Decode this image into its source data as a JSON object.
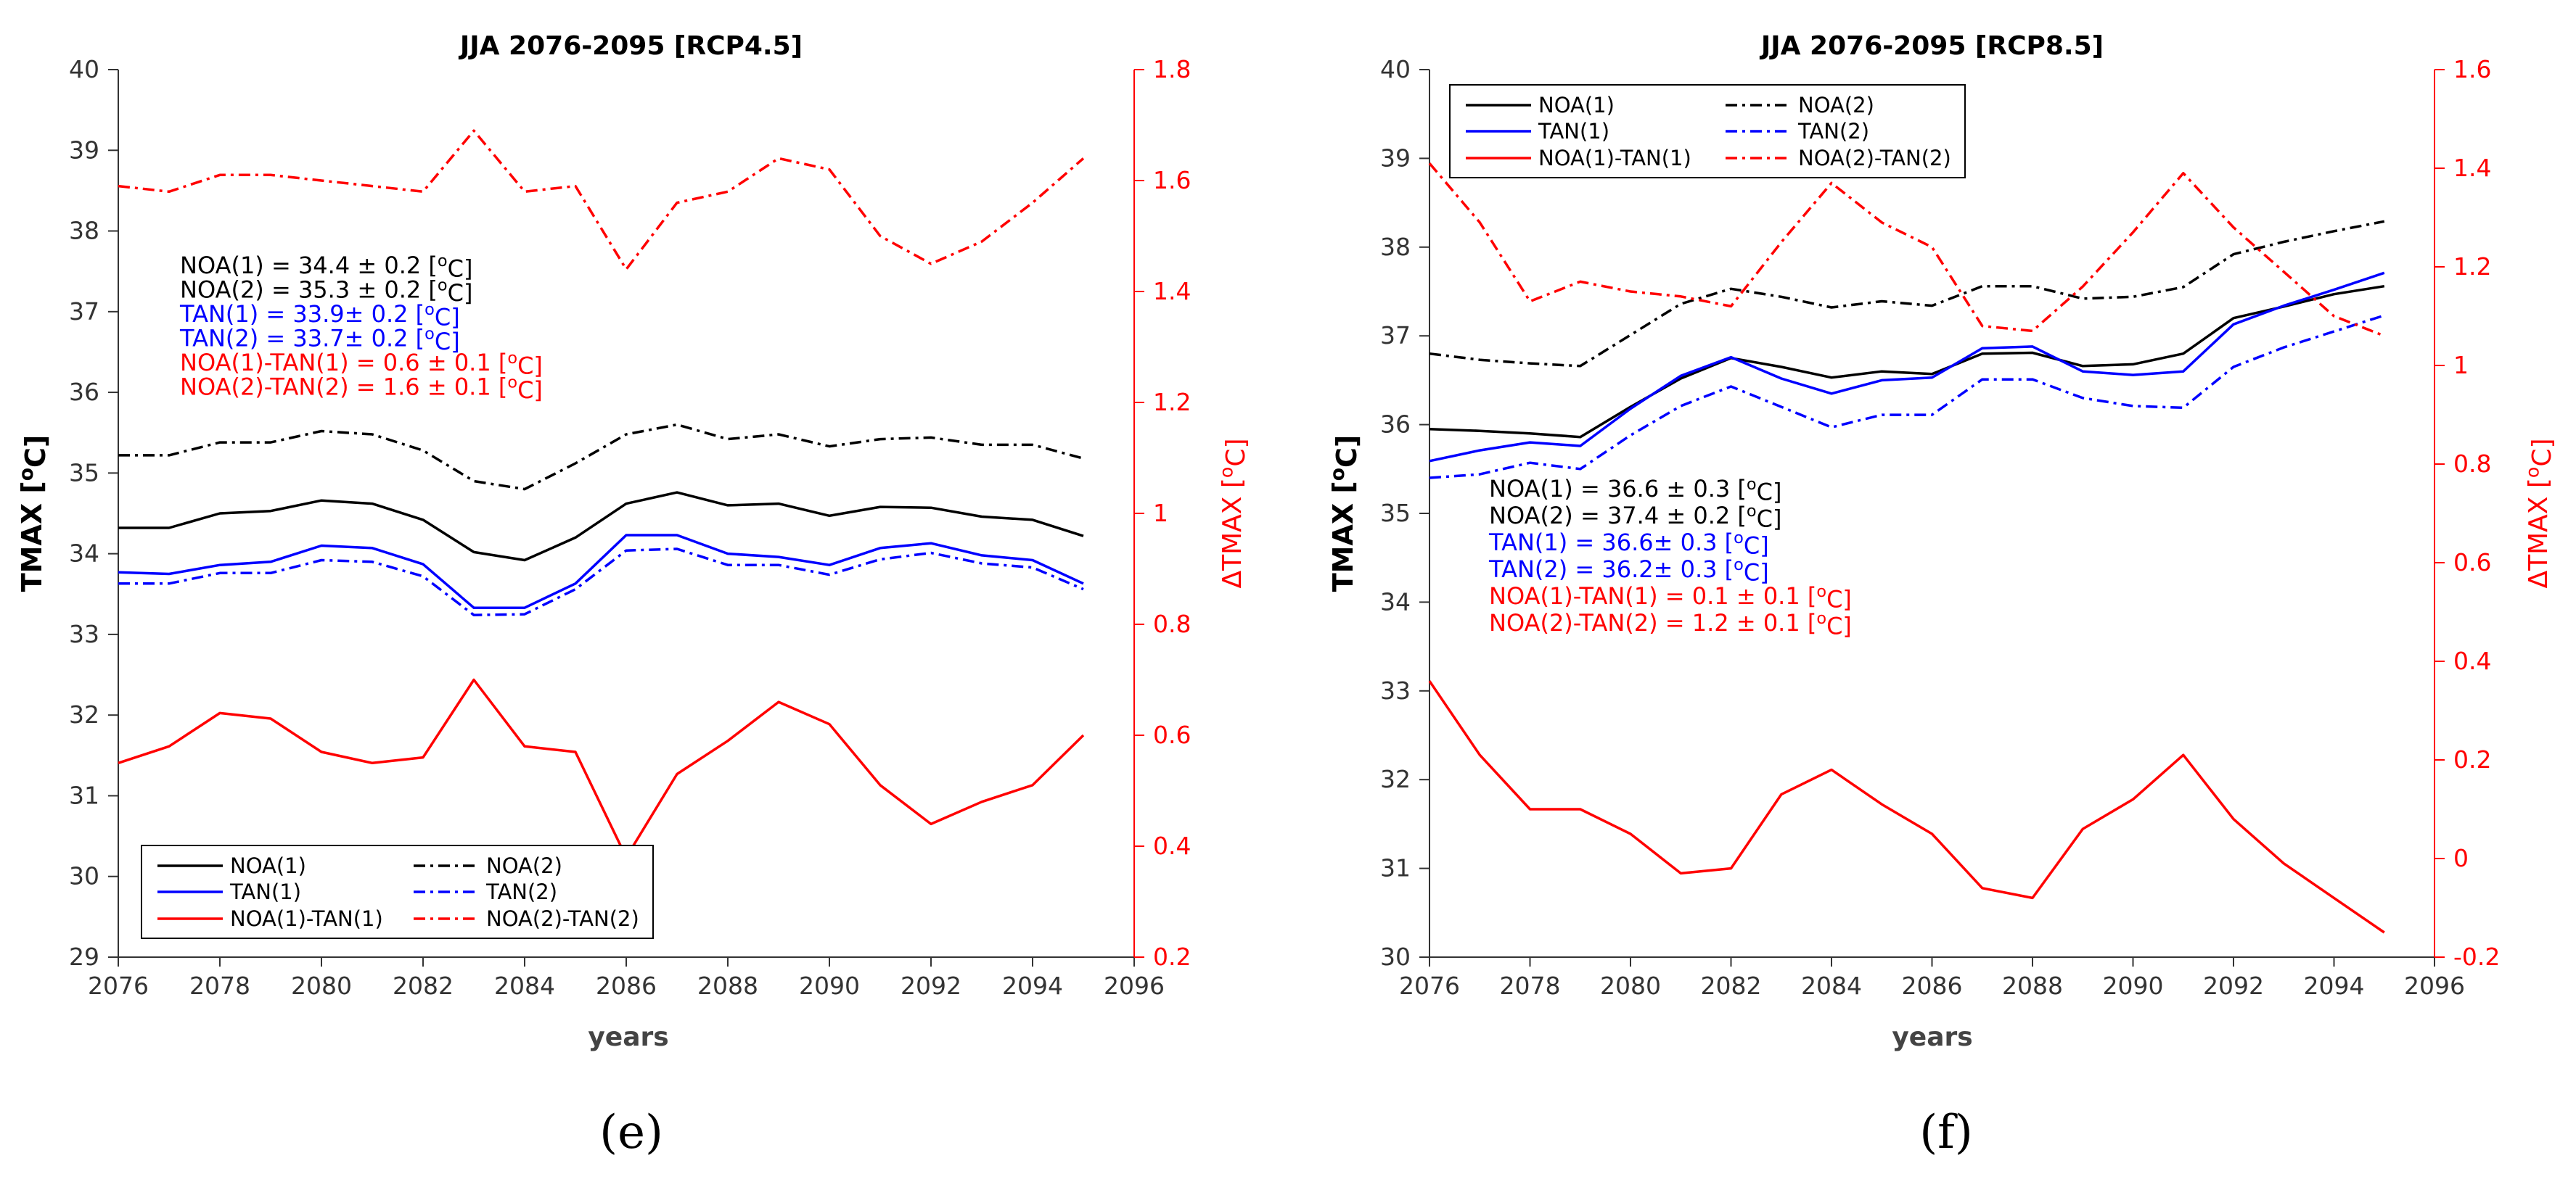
{
  "chart_data": [
    {
      "type": "line",
      "panel_label": "(e)",
      "title": "JJA 2076-2095 [RCP4.5]",
      "xlabel": "years",
      "ylabel_left": "TMAX [°C]",
      "ylabel_right": "ΔTMAX [°C]",
      "xlim": [
        2076,
        2096
      ],
      "ylim_left": [
        29,
        40
      ],
      "ylim_right": [
        0.2,
        1.8
      ],
      "x_ticks": [
        "2076",
        "2078",
        "2080",
        "2082",
        "2084",
        "2086",
        "2088",
        "2090",
        "2092",
        "2094",
        "2096"
      ],
      "y_ticks_left": [
        "29",
        "30",
        "31",
        "32",
        "33",
        "34",
        "35",
        "36",
        "37",
        "38",
        "39",
        "40"
      ],
      "y_ticks_right": [
        "0.2",
        "0.4",
        "0.6",
        "0.8",
        "1",
        "1.2",
        "1.4",
        "1.6",
        "1.8"
      ],
      "x": [
        2076,
        2077,
        2078,
        2079,
        2080,
        2081,
        2082,
        2083,
        2084,
        2085,
        2086,
        2087,
        2088,
        2089,
        2090,
        2091,
        2092,
        2093,
        2094,
        2095
      ],
      "series": [
        {
          "name": "NOA(1)",
          "axis": "left",
          "color": "#000000",
          "dash": "solid",
          "values": [
            34.32,
            34.32,
            34.5,
            34.53,
            34.66,
            34.62,
            34.42,
            34.02,
            33.92,
            34.2,
            34.62,
            34.76,
            34.6,
            34.62,
            34.47,
            34.58,
            34.57,
            34.46,
            34.42,
            34.22
          ]
        },
        {
          "name": "NOA(2)",
          "axis": "left",
          "color": "#000000",
          "dash": "dashdot",
          "values": [
            35.22,
            35.22,
            35.38,
            35.38,
            35.52,
            35.48,
            35.28,
            34.9,
            34.8,
            35.12,
            35.48,
            35.6,
            35.42,
            35.48,
            35.33,
            35.42,
            35.44,
            35.35,
            35.35,
            35.18
          ]
        },
        {
          "name": "TAN(1)",
          "axis": "left",
          "color": "#0000ff",
          "dash": "solid",
          "values": [
            33.77,
            33.75,
            33.86,
            33.9,
            34.1,
            34.07,
            33.87,
            33.33,
            33.33,
            33.63,
            34.23,
            34.23,
            34.0,
            33.96,
            33.86,
            34.07,
            34.13,
            33.98,
            33.92,
            33.63
          ]
        },
        {
          "name": "TAN(2)",
          "axis": "left",
          "color": "#0000ff",
          "dash": "dashdot",
          "values": [
            33.63,
            33.63,
            33.76,
            33.76,
            33.92,
            33.9,
            33.72,
            33.24,
            33.25,
            33.56,
            34.04,
            34.06,
            33.86,
            33.86,
            33.74,
            33.93,
            34.01,
            33.88,
            33.83,
            33.56
          ]
        },
        {
          "name": "NOA(1)-TAN(1)",
          "axis": "right",
          "color": "#ff0000",
          "dash": "solid",
          "values": [
            0.55,
            0.58,
            0.64,
            0.63,
            0.57,
            0.55,
            0.56,
            0.7,
            0.58,
            0.57,
            0.38,
            0.53,
            0.59,
            0.66,
            0.62,
            0.51,
            0.44,
            0.48,
            0.51,
            0.6
          ]
        },
        {
          "name": "NOA(2)-TAN(2)",
          "axis": "right",
          "color": "#ff0000",
          "dash": "dashdot",
          "values": [
            1.59,
            1.58,
            1.61,
            1.61,
            1.6,
            1.59,
            1.58,
            1.69,
            1.58,
            1.59,
            1.44,
            1.56,
            1.58,
            1.64,
            1.62,
            1.5,
            1.45,
            1.49,
            1.56,
            1.64
          ]
        }
      ],
      "annotations": [
        {
          "text": "NOA(1) = 34.4 ± 0.2 [°C]",
          "color": "#000000"
        },
        {
          "text": "NOA(2) = 35.3 ± 0.2 [°C]",
          "color": "#000000"
        },
        {
          "text": "TAN(1) = 33.9± 0.2 [°C]",
          "color": "#0000ff"
        },
        {
          "text": "TAN(2) = 33.7± 0.2 [°C]",
          "color": "#0000ff"
        },
        {
          "text": "NOA(1)-TAN(1) = 0.6 ± 0.1 [°C]",
          "color": "#ff0000"
        },
        {
          "text": "NOA(2)-TAN(2) = 1.6 ± 0.1 [°C]",
          "color": "#ff0000"
        }
      ],
      "legend_location": "bottom-left"
    },
    {
      "type": "line",
      "panel_label": "(f)",
      "title": "JJA 2076-2095 [RCP8.5]",
      "xlabel": "years",
      "ylabel_left": "TMAX [°C]",
      "ylabel_right": "ΔTMAX [°C]",
      "xlim": [
        2076,
        2096
      ],
      "ylim_left": [
        30,
        40
      ],
      "ylim_right": [
        -0.2,
        1.6
      ],
      "x_ticks": [
        "2076",
        "2078",
        "2080",
        "2082",
        "2084",
        "2086",
        "2088",
        "2090",
        "2092",
        "2094",
        "2096"
      ],
      "y_ticks_left": [
        "30",
        "31",
        "32",
        "33",
        "34",
        "35",
        "36",
        "37",
        "38",
        "39",
        "40"
      ],
      "y_ticks_right": [
        "-0.2",
        "0",
        "0.2",
        "0.4",
        "0.6",
        "0.8",
        "1",
        "1.2",
        "1.4",
        "1.6"
      ],
      "x": [
        2076,
        2077,
        2078,
        2079,
        2080,
        2081,
        2082,
        2083,
        2084,
        2085,
        2086,
        2087,
        2088,
        2089,
        2090,
        2091,
        2092,
        2093,
        2094,
        2095
      ],
      "series": [
        {
          "name": "NOA(1)",
          "axis": "left",
          "color": "#000000",
          "dash": "solid",
          "values": [
            35.95,
            35.93,
            35.9,
            35.86,
            36.2,
            36.52,
            36.75,
            36.65,
            36.53,
            36.6,
            36.57,
            36.8,
            36.81,
            36.66,
            36.68,
            36.8,
            37.2,
            37.33,
            37.47,
            37.56
          ]
        },
        {
          "name": "NOA(2)",
          "axis": "left",
          "color": "#000000",
          "dash": "dashdot",
          "values": [
            36.8,
            36.73,
            36.69,
            36.66,
            37.01,
            37.36,
            37.53,
            37.44,
            37.32,
            37.39,
            37.34,
            37.56,
            37.56,
            37.42,
            37.44,
            37.55,
            37.92,
            38.06,
            38.18,
            38.29
          ]
        },
        {
          "name": "TAN(1)",
          "axis": "left",
          "color": "#0000ff",
          "dash": "solid",
          "values": [
            35.59,
            35.71,
            35.8,
            35.76,
            36.18,
            36.55,
            36.76,
            36.52,
            36.35,
            36.5,
            36.53,
            36.86,
            36.88,
            36.6,
            36.56,
            36.6,
            37.13,
            37.34,
            37.52,
            37.71
          ]
        },
        {
          "name": "TAN(2)",
          "axis": "left",
          "color": "#0000ff",
          "dash": "dashdot",
          "values": [
            35.4,
            35.44,
            35.57,
            35.5,
            35.88,
            36.21,
            36.43,
            36.2,
            35.97,
            36.11,
            36.11,
            36.51,
            36.51,
            36.3,
            36.21,
            36.19,
            36.65,
            36.87,
            37.05,
            37.23
          ]
        },
        {
          "name": "NOA(1)-TAN(1)",
          "axis": "right",
          "color": "#ff0000",
          "dash": "solid",
          "values": [
            0.36,
            0.21,
            0.1,
            0.1,
            0.05,
            -0.03,
            -0.02,
            0.13,
            0.18,
            0.11,
            0.05,
            -0.06,
            -0.08,
            0.06,
            0.12,
            0.21,
            0.08,
            -0.01,
            -0.08,
            -0.15
          ]
        },
        {
          "name": "NOA(2)-TAN(2)",
          "axis": "right",
          "color": "#ff0000",
          "dash": "dashdot",
          "values": [
            1.41,
            1.29,
            1.13,
            1.17,
            1.15,
            1.14,
            1.12,
            1.25,
            1.37,
            1.29,
            1.24,
            1.08,
            1.07,
            1.16,
            1.27,
            1.39,
            1.28,
            1.19,
            1.1,
            1.06
          ]
        }
      ],
      "annotations": [
        {
          "text": "NOA(1) = 36.6 ± 0.3 [°C]",
          "color": "#000000"
        },
        {
          "text": "NOA(2) = 37.4 ± 0.2 [°C]",
          "color": "#000000"
        },
        {
          "text": "TAN(1) = 36.6± 0.3 [°C]",
          "color": "#0000ff"
        },
        {
          "text": "TAN(2) = 36.2± 0.3 [°C]",
          "color": "#0000ff"
        },
        {
          "text": "NOA(1)-TAN(1) = 0.1 ± 0.1 [°C]",
          "color": "#ff0000"
        },
        {
          "text": "NOA(2)-TAN(2) = 1.2 ± 0.1 [°C]",
          "color": "#ff0000"
        }
      ],
      "legend_location": "top-left"
    }
  ]
}
